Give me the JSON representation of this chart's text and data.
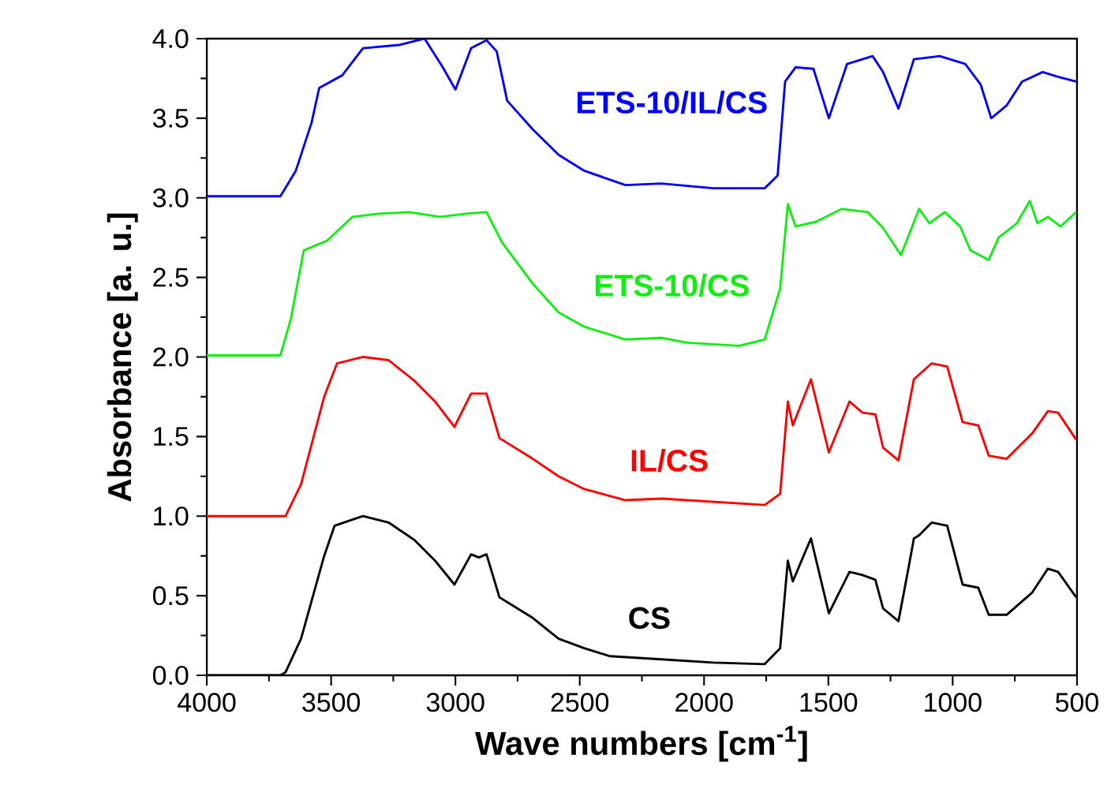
{
  "chart_data": {
    "type": "line",
    "xlabel": "Wave numbers [cm$^{-1}$]",
    "ylabel": "Absorbance [a. u.]",
    "xlim": [
      4000,
      500
    ],
    "xticks": [
      4000,
      3500,
      3000,
      2500,
      2000,
      1500,
      1000,
      500
    ],
    "ylim": [
      0,
      4
    ],
    "yticks": [
      {
        "value": 0,
        "label": "0.0"
      },
      {
        "value": 0.5,
        "label": "0.5"
      },
      {
        "value": 1,
        "label": "1.0"
      },
      {
        "value": 1.5,
        "label": "1.5"
      },
      {
        "value": 2,
        "label": "2.0"
      },
      {
        "value": 2.5,
        "label": "2.5"
      },
      {
        "value": 3,
        "label": "3.0"
      },
      {
        "value": 3.5,
        "label": "3.5"
      },
      {
        "value": 4,
        "label": "4.0"
      }
    ],
    "grid": false,
    "legend": false,
    "marker": "none",
    "line_style": "solid",
    "series": [
      {
        "name": "CS",
        "color": "#000000",
        "x": [
          4000,
          3704,
          3683,
          3621,
          3528,
          3486,
          3372,
          3269,
          3165,
          3082,
          3004,
          2937,
          2906,
          2875,
          2823,
          2689,
          2585,
          2482,
          2378,
          2171,
          1963,
          1756,
          1694,
          1663,
          1643,
          1570,
          1498,
          1415,
          1363,
          1311,
          1280,
          1218,
          1177,
          1156,
          1135,
          1084,
          1022,
          960,
          897,
          855,
          783,
          680,
          617,
          576,
          503
        ],
        "values": [
          0.0,
          0.0,
          0.02,
          0.23,
          0.75,
          0.94,
          1.0,
          0.96,
          0.85,
          0.72,
          0.57,
          0.76,
          0.74,
          0.76,
          0.49,
          0.36,
          0.23,
          0.17,
          0.12,
          0.1,
          0.08,
          0.07,
          0.17,
          0.72,
          0.59,
          0.86,
          0.39,
          0.65,
          0.63,
          0.6,
          0.42,
          0.34,
          0.68,
          0.86,
          0.88,
          0.96,
          0.94,
          0.57,
          0.55,
          0.38,
          0.38,
          0.52,
          0.67,
          0.65,
          0.49
        ]
      },
      {
        "name": "IL/CS",
        "color": "#ff0000",
        "x": [
          4000,
          3704,
          3683,
          3621,
          3528,
          3476,
          3372,
          3269,
          3165,
          3082,
          3004,
          2937,
          2875,
          2823,
          2689,
          2585,
          2482,
          2316,
          2171,
          1756,
          1694,
          1663,
          1643,
          1570,
          1498,
          1415,
          1363,
          1311,
          1280,
          1218,
          1156,
          1084,
          1022,
          960,
          897,
          855,
          783,
          680,
          617,
          576,
          503
        ],
        "values": [
          1.0,
          1.0,
          1.0,
          1.2,
          1.75,
          1.96,
          2.0,
          1.98,
          1.85,
          1.72,
          1.56,
          1.77,
          1.77,
          1.49,
          1.36,
          1.25,
          1.17,
          1.1,
          1.11,
          1.07,
          1.14,
          1.72,
          1.57,
          1.86,
          1.4,
          1.72,
          1.65,
          1.64,
          1.43,
          1.35,
          1.86,
          1.96,
          1.94,
          1.59,
          1.57,
          1.38,
          1.36,
          1.52,
          1.66,
          1.65,
          1.48
        ]
      },
      {
        "name": "ETS-10/CS",
        "color": "#11ee11",
        "x": [
          4000,
          3704,
          3662,
          3610,
          3517,
          3414,
          3310,
          3186,
          3062,
          2958,
          2875,
          2813,
          2689,
          2585,
          2482,
          2316,
          2171,
          2067,
          1860,
          1756,
          1694,
          1663,
          1632,
          1549,
          1446,
          1342,
          1280,
          1208,
          1135,
          1094,
          1032,
          970,
          929,
          855,
          815,
          742,
          690,
          659,
          617,
          566,
          503
        ],
        "values": [
          2.01,
          2.01,
          2.24,
          2.67,
          2.73,
          2.88,
          2.9,
          2.91,
          2.88,
          2.9,
          2.91,
          2.72,
          2.46,
          2.28,
          2.19,
          2.11,
          2.12,
          2.09,
          2.07,
          2.11,
          2.43,
          2.96,
          2.82,
          2.85,
          2.93,
          2.91,
          2.81,
          2.64,
          2.93,
          2.84,
          2.91,
          2.82,
          2.67,
          2.61,
          2.75,
          2.84,
          2.98,
          2.84,
          2.88,
          2.82,
          2.91
        ]
      },
      {
        "name": "ETS-10/IL/CS",
        "color": "#0000ff",
        "x": [
          4000,
          3704,
          3642,
          3579,
          3548,
          3455,
          3372,
          3227,
          3124,
          3051,
          3000,
          2937,
          2875,
          2834,
          2792,
          2689,
          2585,
          2482,
          2316,
          2171,
          1963,
          1756,
          1704,
          1674,
          1632,
          1560,
          1498,
          1425,
          1322,
          1280,
          1218,
          1156,
          1052,
          949,
          887,
          845,
          783,
          721,
          638,
          576,
          503
        ],
        "values": [
          3.01,
          3.01,
          3.17,
          3.47,
          3.69,
          3.77,
          3.94,
          3.96,
          4.0,
          3.82,
          3.68,
          3.94,
          3.99,
          3.92,
          3.61,
          3.43,
          3.27,
          3.17,
          3.08,
          3.09,
          3.06,
          3.06,
          3.14,
          3.73,
          3.82,
          3.81,
          3.5,
          3.84,
          3.89,
          3.79,
          3.56,
          3.87,
          3.89,
          3.84,
          3.71,
          3.5,
          3.58,
          3.73,
          3.79,
          3.76,
          3.73
        ]
      }
    ]
  }
}
